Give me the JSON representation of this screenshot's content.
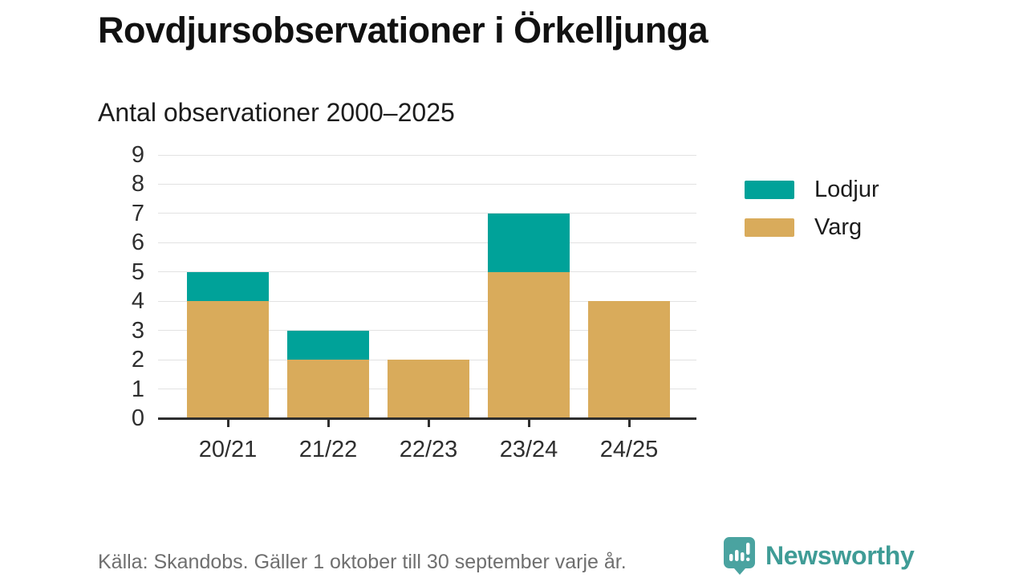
{
  "header": {
    "title": "Rovdjursobservationer i Örkelljunga",
    "subtitle": "Antal observationer 2000–2025"
  },
  "chart_data": {
    "type": "bar",
    "stacked": true,
    "title": "Rovdjursobservationer i Örkelljunga",
    "subtitle": "Antal observationer 2000–2025",
    "categories": [
      "20/21",
      "21/22",
      "22/23",
      "23/24",
      "24/25"
    ],
    "series": [
      {
        "name": "Lodjur",
        "color": "#00a299",
        "values": [
          1,
          1,
          0,
          2,
          0
        ]
      },
      {
        "name": "Varg",
        "color": "#d9ab5b",
        "values": [
          4,
          2,
          2,
          5,
          4
        ]
      }
    ],
    "totals": [
      5,
      3,
      2,
      7,
      4
    ],
    "xlabel": "",
    "ylabel": "",
    "ylim": [
      0,
      9
    ],
    "yticks": [
      0,
      1,
      2,
      3,
      4,
      5,
      6,
      7,
      8,
      9
    ],
    "grid": true,
    "legend_position": "right",
    "colors": {
      "grid": "#e2e2e2",
      "axis": "#2e2e2e",
      "text": "#2e2e2e"
    }
  },
  "footer": {
    "source": "Källa: Skandobs. Gäller 1 oktober till 30 september varje år.",
    "brand_name": "Newsworthy",
    "brand_text_color": "#3f9c96",
    "brand_icon_color": "#4aa3a0",
    "brand_icon": "newsworthy-speech-bubble-bar-chart-icon"
  }
}
